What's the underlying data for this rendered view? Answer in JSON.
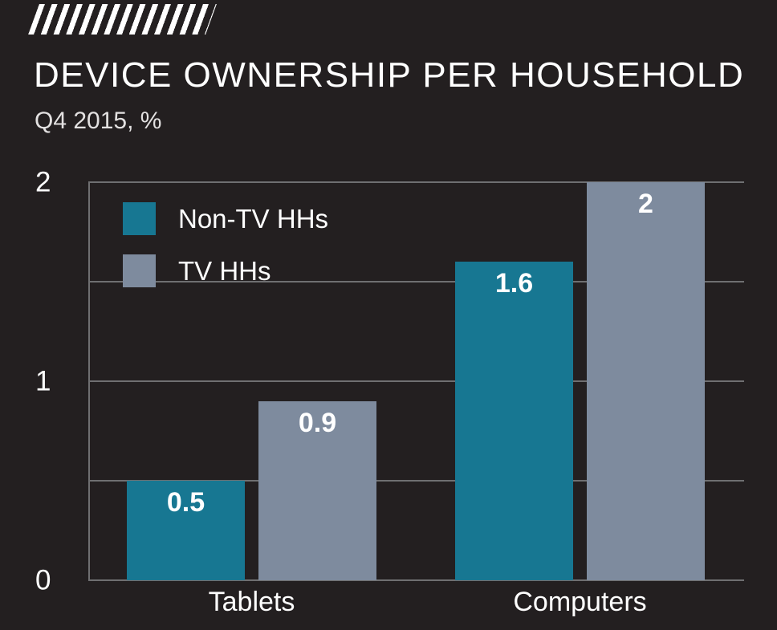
{
  "header": {
    "title": "DEVICE OWNERSHIP PER HOUSEHOLD",
    "subtitle": "Q4 2015, %"
  },
  "decoration": {
    "hatch_icon": "diagonal-stripes",
    "hatch_color": "#ffffff"
  },
  "colors": {
    "background": "#231f20",
    "grid": "#6f6f71",
    "text": "#ffffff",
    "subtitle_text": "#e3e1e1",
    "series_non_tv": "#177792",
    "series_tv": "#7e8b9e"
  },
  "chart_data": {
    "type": "bar",
    "title": "DEVICE OWNERSHIP PER HOUSEHOLD",
    "subtitle": "Q4 2015, %",
    "categories": [
      "Tablets",
      "Computers"
    ],
    "series": [
      {
        "name": "Non-TV HHs",
        "color": "#177792",
        "values": [
          0.5,
          1.6
        ]
      },
      {
        "name": "TV HHs",
        "color": "#7e8b9e",
        "values": [
          0.9,
          2
        ]
      }
    ],
    "value_labels": [
      "0.5",
      "0.9",
      "1.6",
      "2"
    ],
    "xlabel": "",
    "ylabel": "",
    "ylim": [
      0,
      2
    ],
    "yticks": [
      0,
      1,
      2
    ],
    "gridline_step": 0.5,
    "grid": true,
    "legend_position": "top-left-inside"
  }
}
